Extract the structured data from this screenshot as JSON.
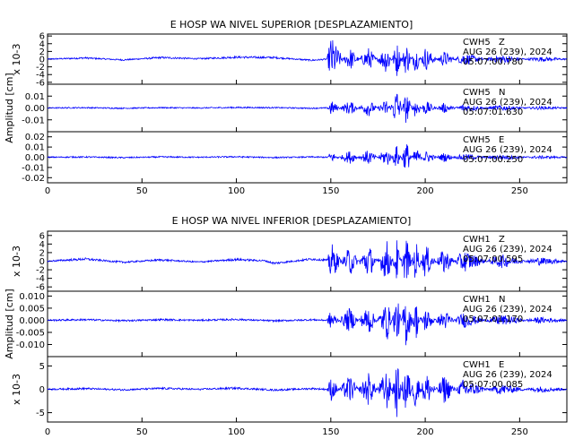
{
  "chart_data": [
    {
      "type": "line",
      "title": "E HOSP WA NIVEL SUPERIOR [DESPLAZAMIENTO]",
      "xlim": [
        0,
        275
      ],
      "xticks": [
        0,
        50,
        100,
        150,
        200,
        250
      ],
      "xlabel": "",
      "ylabel": "Amplitud [cm]",
      "panels": [
        {
          "scale_label": "x 10-3",
          "ylim": [
            -6.5,
            6.5
          ],
          "yticks": [
            -6,
            -4,
            -2,
            0,
            2,
            4,
            6
          ],
          "ytick_labels": [
            "-6",
            "-4",
            "-2",
            "0",
            "2",
            "4",
            "6"
          ],
          "station": "CWH5",
          "channel": "Z",
          "date": "AUG 26 (239), 2024",
          "time": "05:07:00.780",
          "series": [
            {
              "color": "#0000ff",
              "x": [
                0,
                20,
                40,
                60,
                80,
                100,
                120,
                140,
                148,
                150,
                160,
                170,
                180,
                185,
                190,
                195,
                200,
                210,
                220,
                240,
                260,
                275
              ],
              "y": [
                0,
                0.6,
                -0.4,
                0.8,
                0.2,
                1.0,
                0.8,
                -0.6,
                0,
                -6,
                3,
                -3,
                4,
                -4.5,
                4.5,
                -3.5,
                3,
                -2,
                1.5,
                -1,
                0.5,
                0
              ]
            }
          ]
        },
        {
          "scale_label": "",
          "ylim": [
            -0.02,
            0.02
          ],
          "yticks": [
            -0.01,
            0,
            0.01
          ],
          "ytick_labels": [
            "-0.01",
            "0.00",
            "0.01"
          ],
          "station": "CWH5",
          "channel": "N",
          "date": "AUG 26 (239), 2024",
          "time": "05:07:01.630",
          "series": [
            {
              "color": "#0000ff",
              "x": [
                0,
                20,
                40,
                60,
                80,
                100,
                120,
                140,
                148,
                150,
                160,
                170,
                180,
                185,
                190,
                195,
                200,
                210,
                220,
                240,
                260,
                275
              ],
              "y": [
                0,
                0.0005,
                -0.0005,
                0.0005,
                0,
                0.0008,
                0.0005,
                -0.0005,
                0,
                0.006,
                -0.006,
                0.007,
                -0.008,
                0.018,
                -0.014,
                0.009,
                -0.006,
                0.004,
                -0.003,
                0.002,
                -0.001,
                0
              ]
            }
          ]
        },
        {
          "scale_label": "",
          "ylim": [
            -0.025,
            0.025
          ],
          "yticks": [
            -0.02,
            -0.01,
            0,
            0.01,
            0.02
          ],
          "ytick_labels": [
            "-0.02",
            "-0.01",
            "0.00",
            "0.01",
            "0.02"
          ],
          "station": "CWH5",
          "channel": "E",
          "date": "AUG 26 (239), 2024",
          "time": "05:07:00.250",
          "series": [
            {
              "color": "#0000ff",
              "x": [
                0,
                20,
                40,
                60,
                80,
                100,
                120,
                140,
                148,
                150,
                160,
                170,
                180,
                185,
                190,
                195,
                200,
                210,
                220,
                240,
                260,
                275
              ],
              "y": [
                0,
                0.0005,
                -0.0008,
                0.0006,
                0,
                0.0009,
                -0.0006,
                0.0005,
                0,
                -0.005,
                0.006,
                -0.007,
                0.009,
                -0.012,
                0.016,
                -0.01,
                0.006,
                -0.004,
                0.003,
                -0.002,
                0.001,
                0
              ]
            }
          ]
        }
      ]
    },
    {
      "type": "line",
      "title": "E HOSP WA NIVEL INFERIOR [DESPLAZAMIENTO]",
      "xlim": [
        0,
        275
      ],
      "xticks": [
        0,
        50,
        100,
        150,
        200,
        250
      ],
      "xlabel": "",
      "ylabel": "Amplitud [cm]",
      "panels": [
        {
          "scale_label": "x 10-3",
          "ylim": [
            -7,
            7
          ],
          "yticks": [
            -6,
            -4,
            -2,
            0,
            2,
            4,
            6
          ],
          "ytick_labels": [
            "-6",
            "-4",
            "-2",
            "0",
            "2",
            "4",
            "6"
          ],
          "station": "CWH1",
          "channel": "Z",
          "date": "AUG 26 (239), 2024",
          "time": "05:07:00.595",
          "series": [
            {
              "color": "#0000ff",
              "x": [
                0,
                20,
                40,
                60,
                80,
                100,
                115,
                120,
                140,
                148,
                150,
                160,
                170,
                180,
                185,
                190,
                195,
                200,
                210,
                220,
                240,
                260,
                275
              ],
              "y": [
                0,
                1.0,
                -0.5,
                0.6,
                -0.4,
                0.8,
                0.2,
                -1.0,
                1.0,
                0.5,
                -4.5,
                3.5,
                -4.0,
                5.0,
                -5.0,
                6.0,
                -5.0,
                4.0,
                -3.0,
                2.5,
                -1.5,
                0.8,
                0
              ]
            }
          ]
        },
        {
          "scale_label": "",
          "ylim": [
            -0.015,
            0.012
          ],
          "yticks": [
            -0.01,
            -0.005,
            0,
            0.005,
            0.01
          ],
          "ytick_labels": [
            "-0.010",
            "-0.005",
            "0.000",
            "0.005",
            "0.010"
          ],
          "station": "CWH1",
          "channel": "N",
          "date": "AUG 26 (239), 2024",
          "time": "05:07:01.170",
          "series": [
            {
              "color": "#0000ff",
              "x": [
                0,
                20,
                40,
                60,
                80,
                100,
                120,
                140,
                148,
                150,
                160,
                170,
                180,
                185,
                190,
                195,
                200,
                210,
                220,
                240,
                260,
                275
              ],
              "y": [
                0,
                0.0005,
                -0.0004,
                0.0005,
                0,
                0.0007,
                -0.0005,
                0.0004,
                0,
                0.004,
                -0.005,
                0.006,
                -0.008,
                0.01,
                -0.012,
                0.008,
                -0.005,
                0.004,
                -0.003,
                0.002,
                -0.001,
                0
              ]
            }
          ]
        },
        {
          "scale_label": "x 10-3",
          "ylim": [
            -7,
            7
          ],
          "yticks": [
            -5,
            0,
            5
          ],
          "ytick_labels": [
            "-5",
            "0",
            "5"
          ],
          "station": "CWH1",
          "channel": "E",
          "date": "AUG 26 (239), 2024",
          "time": "05:07:00.085",
          "series": [
            {
              "color": "#0000ff",
              "x": [
                0,
                20,
                40,
                60,
                80,
                100,
                120,
                140,
                148,
                150,
                160,
                170,
                180,
                185,
                190,
                195,
                200,
                210,
                220,
                240,
                260,
                275
              ],
              "y": [
                0,
                0.3,
                -0.2,
                0.4,
                0,
                0.5,
                -0.3,
                0.3,
                0,
                -2.5,
                3.0,
                -3.5,
                4.5,
                -6.0,
                6.5,
                -5.0,
                4.0,
                -3.0,
                2.0,
                -1.0,
                0.5,
                0
              ]
            }
          ]
        }
      ]
    }
  ]
}
